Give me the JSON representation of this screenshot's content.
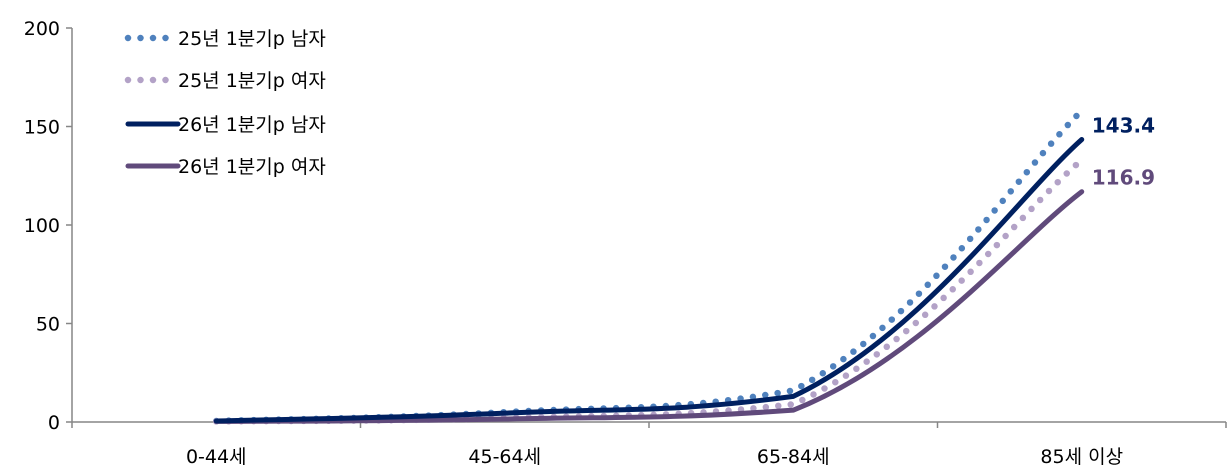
{
  "chart_data": {
    "type": "line",
    "categories": [
      "0-44세",
      "45-64세",
      "65-84세",
      "85세 이상"
    ],
    "ylim": [
      0,
      200
    ],
    "yticks": [
      0,
      50,
      100,
      150,
      200
    ],
    "grid": false,
    "legend_position": "top-left",
    "series": [
      {
        "name": "25년 1분기p 남자",
        "values": [
          0.5,
          5.0,
          16.0,
          158.0
        ],
        "color": "#4F81BD",
        "style": "dotted"
      },
      {
        "name": "25년 1분기p 여자",
        "values": [
          0.3,
          2.0,
          9.0,
          133.0
        ],
        "color": "#B3A2C7",
        "style": "dotted"
      },
      {
        "name": "26년 1분기p 남자",
        "values": [
          0.5,
          4.5,
          13.0,
          143.4
        ],
        "color": "#002060",
        "style": "solid",
        "label": "143.4"
      },
      {
        "name": "26년 1분기p 여자",
        "values": [
          0.3,
          1.5,
          6.0,
          116.9
        ],
        "color": "#604A7B",
        "style": "solid",
        "label": "116.9"
      }
    ]
  }
}
